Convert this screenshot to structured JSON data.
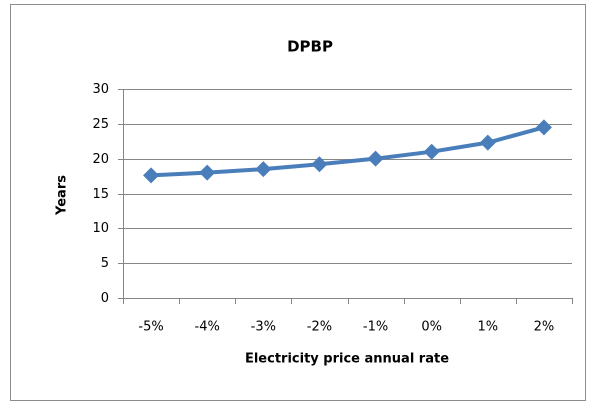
{
  "chart_data": {
    "type": "line",
    "title": "DPBP",
    "x_label": "Electricity price annual rate",
    "y_label": "Years",
    "categories": [
      "-5%",
      "-4%",
      "-3%",
      "-2%",
      "-1%",
      "0%",
      "1%",
      "2%"
    ],
    "values": [
      17.6,
      18.0,
      18.5,
      19.2,
      20.0,
      21.0,
      22.3,
      24.5
    ],
    "color": "#4a7ebb",
    "ylim": [
      0,
      30
    ],
    "yticks": [
      0,
      5,
      10,
      15,
      20,
      25,
      30
    ],
    "grid": true
  }
}
